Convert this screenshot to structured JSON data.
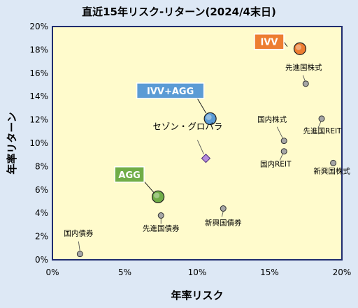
{
  "chart_data": {
    "type": "scatter",
    "title": "直近15年リスク-リターン(2024/4末日)",
    "xlabel": "年率リスク",
    "ylabel": "年率リターン",
    "xlim": [
      0,
      20
    ],
    "ylim": [
      0,
      20
    ],
    "x_ticks": [
      "0%",
      "5%",
      "10%",
      "15%",
      "20%"
    ],
    "y_ticks": [
      "0%",
      "2%",
      "4%",
      "6%",
      "8%",
      "10%",
      "12%",
      "14%",
      "16%",
      "18%",
      "20%"
    ],
    "grid": false,
    "points": [
      {
        "label": "IVV",
        "x": 17.1,
        "y": 18.1,
        "style": "big",
        "color": "#ed7d31",
        "callout": true
      },
      {
        "label": "IVV+AGG",
        "x": 10.9,
        "y": 12.1,
        "style": "big",
        "color": "#5b9bd5",
        "callout": true
      },
      {
        "label": "AGG",
        "x": 7.3,
        "y": 5.4,
        "style": "big",
        "color": "#70ad47",
        "callout": true
      },
      {
        "label": "セゾン・グロバラ",
        "x": 10.6,
        "y": 8.7,
        "style": "diamond",
        "color": "#b48cdc",
        "text_color": "#7030a0"
      },
      {
        "label": "先進国株式",
        "x": 17.5,
        "y": 15.1,
        "style": "small"
      },
      {
        "label": "国内株式",
        "x": 16.0,
        "y": 10.2,
        "style": "small"
      },
      {
        "label": "先進国REIT",
        "x": 18.6,
        "y": 12.1,
        "style": "small"
      },
      {
        "label": "国内REIT",
        "x": 16.0,
        "y": 9.3,
        "style": "small"
      },
      {
        "label": "新興国株式",
        "x": 19.4,
        "y": 8.3,
        "style": "small"
      },
      {
        "label": "新興国債券",
        "x": 11.8,
        "y": 4.4,
        "style": "small"
      },
      {
        "label": "先進国債券",
        "x": 7.5,
        "y": 3.8,
        "style": "small"
      },
      {
        "label": "国内債券",
        "x": 1.9,
        "y": 0.5,
        "style": "small"
      }
    ]
  }
}
